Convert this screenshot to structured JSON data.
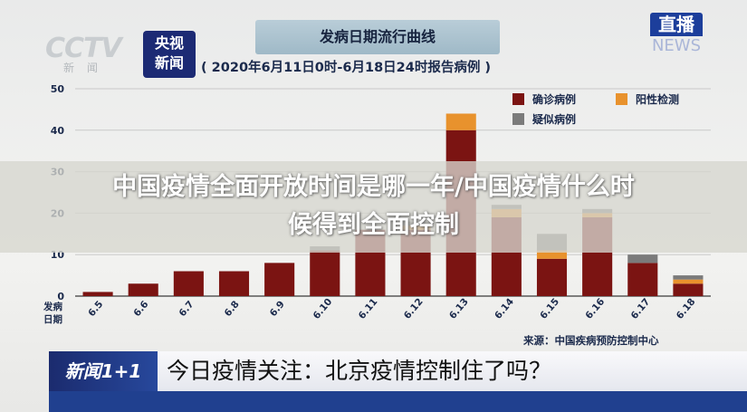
{
  "branding": {
    "cctv_logo": "CCTV",
    "cctv_sub": "新闻",
    "news_logo_line1": "央视",
    "news_logo_line2": "新闻",
    "live_badge_top": "直播",
    "live_badge_bottom": "NEWS"
  },
  "chart_title": "发病日期流行曲线",
  "chart_subtitle": "( 2020年6月11日0时-6月18日24时报告病例 )",
  "overlay_headline_line1": "中国疫情全面开放时间是哪一年/中国疫情什么时",
  "overlay_headline_line2": "候得到全面控制",
  "source_text": "来源：中国疾病预防控制中心",
  "ticker": {
    "logo": "新闻1+1",
    "headline": "今日疫情关注：北京疫情控制住了吗？"
  },
  "colors": {
    "confirmed": "#7b1412",
    "positive": "#e8922d",
    "suspected": "#7b7b7b"
  },
  "chart_data": {
    "type": "bar",
    "stacked": true,
    "xlabel": "发病日期",
    "ylabel": "",
    "ylim": [
      0,
      50
    ],
    "yticks": [
      0,
      10,
      20,
      30,
      40,
      50
    ],
    "grid": true,
    "legend_position": "top-right",
    "categories": [
      "6.5",
      "6.6",
      "6.7",
      "6.8",
      "6.9",
      "6.10",
      "6.11",
      "6.12",
      "6.13",
      "6.14",
      "6.15",
      "6.16",
      "6.17",
      "6.18"
    ],
    "series": [
      {
        "name": "确诊病例",
        "color": "#7b1412",
        "values": [
          1,
          3,
          6,
          6,
          8,
          11,
          16,
          16,
          40,
          19,
          9,
          19,
          8,
          3
        ]
      },
      {
        "name": "阳性检测",
        "color": "#e8922d",
        "values": [
          0,
          0,
          0,
          0,
          0,
          0,
          0,
          1,
          4,
          2,
          2,
          1,
          0,
          1
        ]
      },
      {
        "name": "疑似病例",
        "color": "#7b7b7b",
        "values": [
          0,
          0,
          0,
          0,
          0,
          1,
          0,
          1,
          0,
          1,
          4,
          1,
          2,
          1
        ]
      }
    ]
  }
}
